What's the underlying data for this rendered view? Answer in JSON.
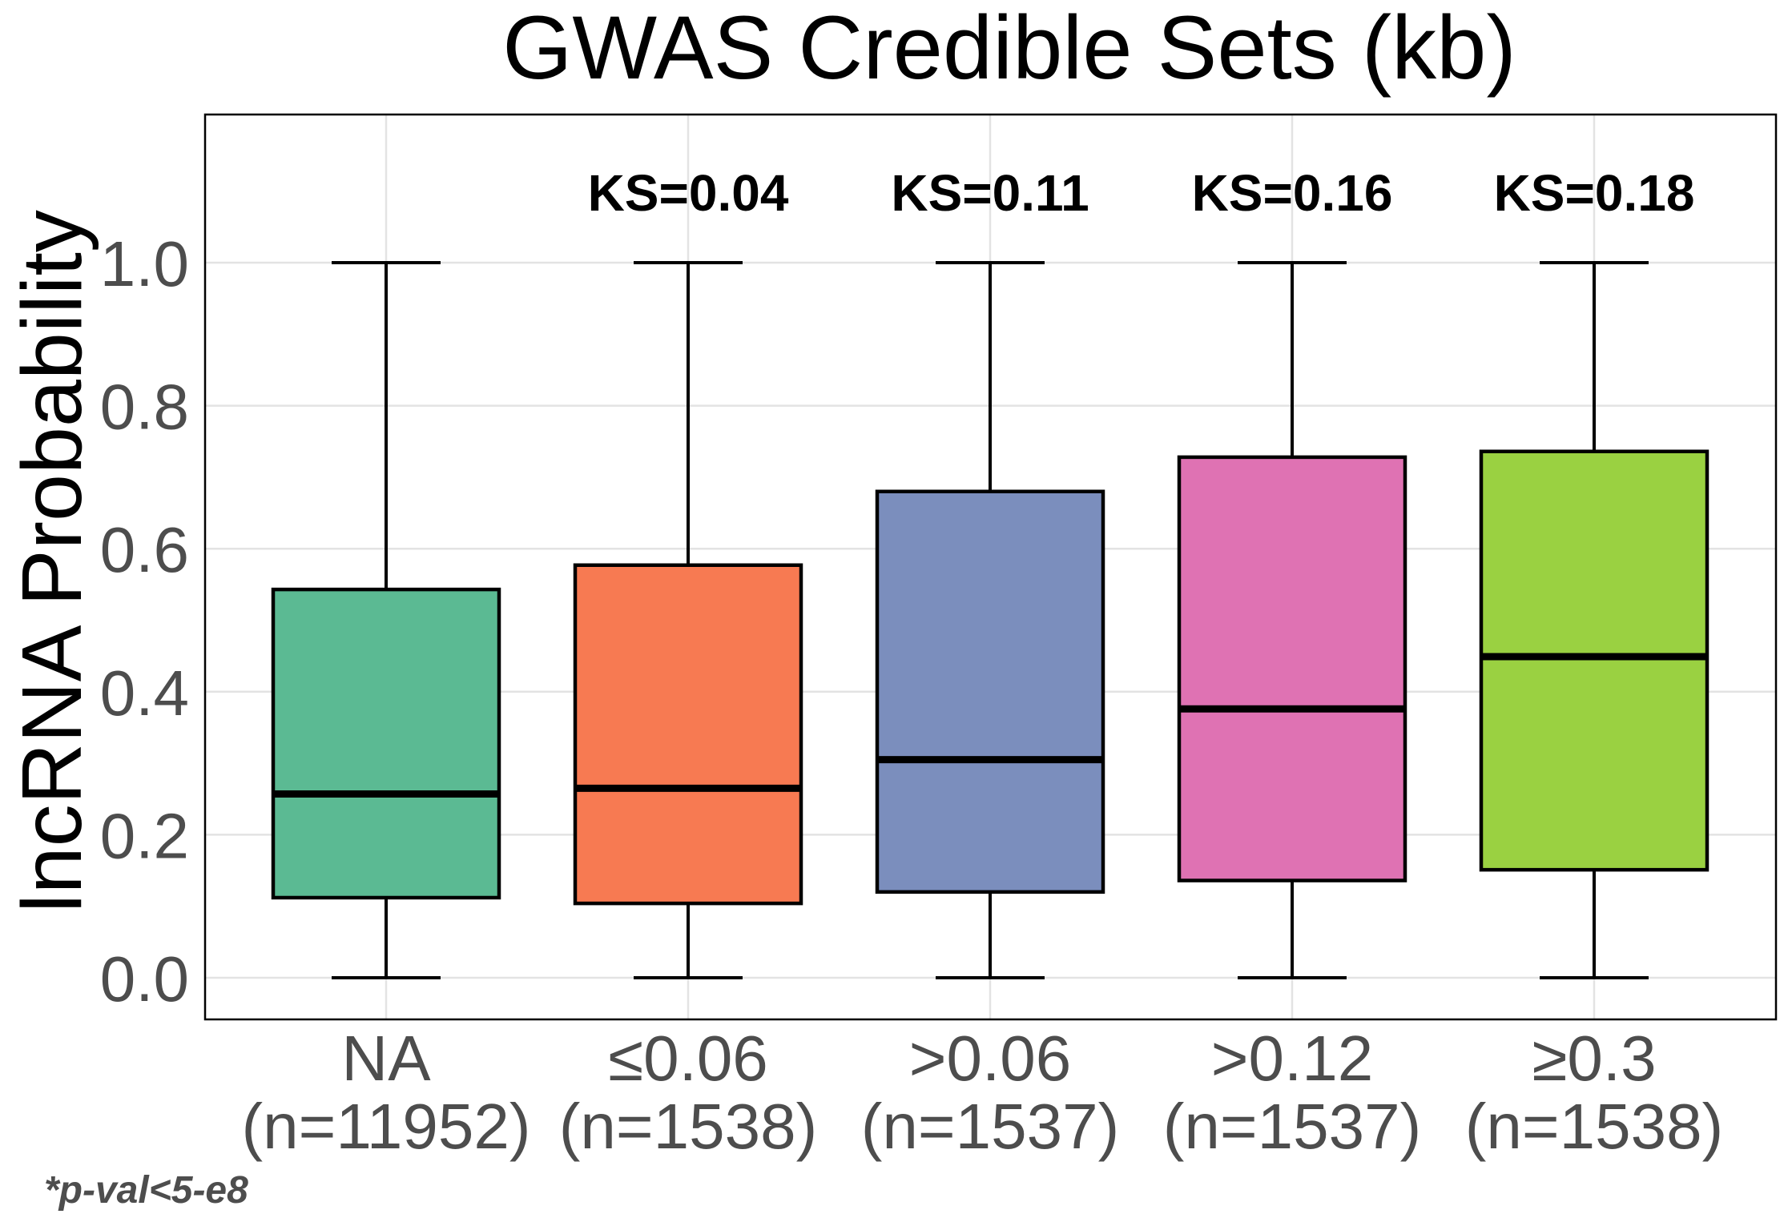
{
  "chart_data": {
    "type": "boxplot",
    "title": "GWAS Credible Sets (kb)",
    "xlabel": "",
    "ylabel": "lncRNA Probability",
    "ylim": [
      -0.057,
      1.21
    ],
    "yticks": [
      "0.0",
      "0.2",
      "0.4",
      "0.6",
      "0.8",
      "1.0"
    ],
    "grid": true,
    "legend": "none",
    "categories": [
      {
        "label": "NA",
        "n_label": "(n=11952)",
        "color": "#5bba93",
        "ks": "",
        "min": 0.0,
        "q1": 0.112,
        "median": 0.257,
        "q3": 0.543,
        "max": 1.0
      },
      {
        "label": "≤0.06",
        "n_label": "(n=1538)",
        "color": "#f77a52",
        "ks": "KS=0.04",
        "min": 0.0,
        "q1": 0.104,
        "median": 0.265,
        "q3": 0.577,
        "max": 1.0
      },
      {
        "label": ">0.06",
        "n_label": "(n=1537)",
        "color": "#7b8ebd",
        "ks": "KS=0.11",
        "min": 0.0,
        "q1": 0.12,
        "median": 0.305,
        "q3": 0.68,
        "max": 1.0
      },
      {
        "label": ">0.12",
        "n_label": "(n=1537)",
        "color": "#df72b3",
        "ks": "KS=0.16",
        "min": 0.0,
        "q1": 0.136,
        "median": 0.376,
        "q3": 0.728,
        "max": 1.0
      },
      {
        "label": "≥0.3",
        "n_label": "(n=1538)",
        "color": "#9ad141",
        "ks": "KS=0.18",
        "min": 0.0,
        "q1": 0.151,
        "median": 0.449,
        "q3": 0.736,
        "max": 1.0
      }
    ]
  },
  "footnote": "*p-val<5-e8"
}
